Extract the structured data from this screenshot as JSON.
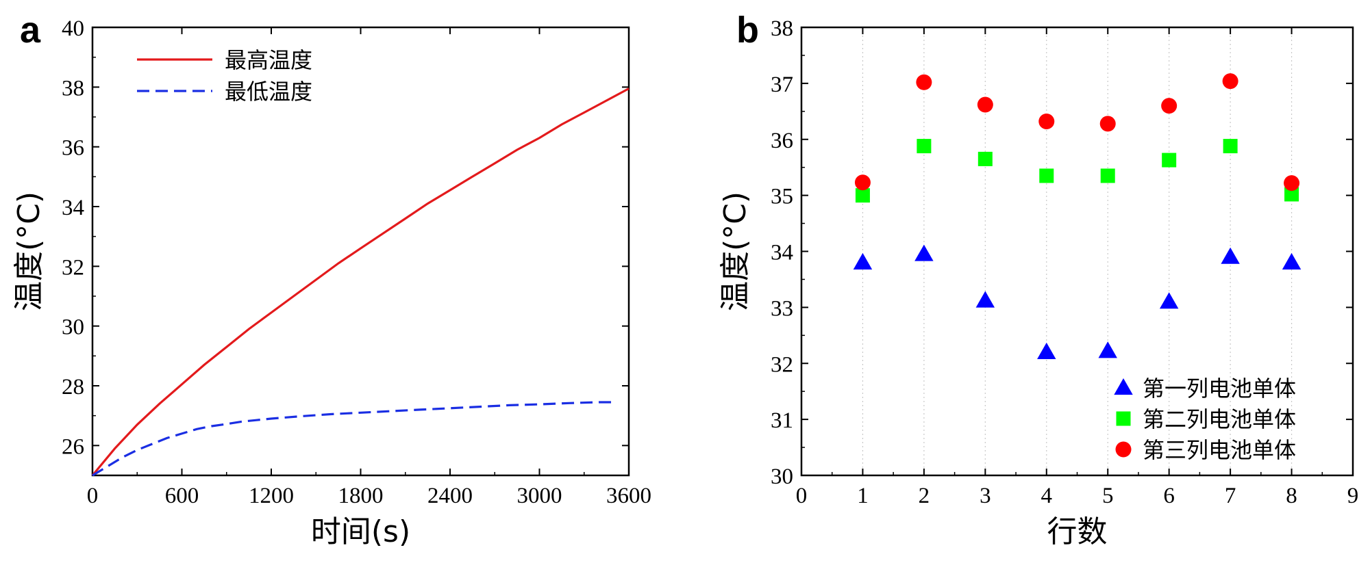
{
  "figure": {
    "panels": [
      {
        "letter": "a",
        "chart_data": {
          "type": "line",
          "title": "",
          "xlabel": "时间(s)",
          "ylabel": "温度(°C)",
          "xlim": [
            0,
            3600
          ],
          "ylim": [
            25,
            40
          ],
          "xticks": [
            0,
            600,
            1200,
            1800,
            2400,
            3000,
            3600
          ],
          "yticks": [
            26,
            28,
            30,
            32,
            34,
            36,
            38,
            40
          ],
          "grid": false,
          "legend_position": "top-left",
          "series": [
            {
              "name": "最高温度",
              "color": "#e31a1c",
              "style": "solid",
              "x": [
                0,
                150,
                300,
                450,
                600,
                750,
                900,
                1050,
                1200,
                1350,
                1500,
                1650,
                1800,
                1950,
                2100,
                2250,
                2400,
                2550,
                2700,
                2850,
                3000,
                3150,
                3300,
                3450,
                3600
              ],
              "y": [
                25.0,
                25.9,
                26.7,
                27.4,
                28.05,
                28.7,
                29.3,
                29.9,
                30.45,
                31.0,
                31.55,
                32.1,
                32.6,
                33.1,
                33.6,
                34.1,
                34.55,
                35.0,
                35.45,
                35.9,
                36.3,
                36.75,
                37.15,
                37.55,
                37.95
              ]
            },
            {
              "name": "最低温度",
              "color": "#1a2ee3",
              "style": "dashed",
              "x": [
                0,
                100,
                200,
                300,
                400,
                500,
                600,
                700,
                800,
                900,
                1000,
                1100,
                1200,
                1400,
                1600,
                1800,
                2000,
                2200,
                2400,
                2600,
                2800,
                3000,
                3200,
                3400,
                3500
              ],
              "y": [
                25.0,
                25.3,
                25.6,
                25.85,
                26.05,
                26.25,
                26.4,
                26.55,
                26.65,
                26.72,
                26.8,
                26.85,
                26.9,
                26.98,
                27.05,
                27.1,
                27.15,
                27.2,
                27.25,
                27.3,
                27.35,
                27.38,
                27.42,
                27.45,
                27.45
              ]
            }
          ]
        }
      },
      {
        "letter": "b",
        "chart_data": {
          "type": "scatter",
          "title": "",
          "xlabel": "行数",
          "ylabel": "温度(°C)",
          "xlim": [
            0,
            9
          ],
          "ylim": [
            30,
            38
          ],
          "xticks": [
            0,
            1,
            2,
            3,
            4,
            5,
            6,
            7,
            8,
            9
          ],
          "yticks": [
            30,
            31,
            32,
            33,
            34,
            35,
            36,
            37,
            38
          ],
          "grid": "vertical dotted at x = 1–8",
          "legend_position": "bottom-right",
          "series": [
            {
              "name": "第一列电池单体",
              "color": "#0000ff",
              "marker": "triangle",
              "x": [
                1,
                2,
                3,
                4,
                5,
                6,
                7,
                8
              ],
              "y": [
                33.8,
                33.95,
                33.12,
                32.2,
                32.22,
                33.1,
                33.9,
                33.8
              ]
            },
            {
              "name": "第二列电池单体",
              "color": "#00ff00",
              "marker": "square",
              "x": [
                1,
                2,
                3,
                4,
                5,
                6,
                7,
                8
              ],
              "y": [
                35.0,
                35.88,
                35.65,
                35.35,
                35.35,
                35.63,
                35.88,
                35.02
              ]
            },
            {
              "name": "第三列电池单体",
              "color": "#ff0000",
              "marker": "circle",
              "x": [
                1,
                2,
                3,
                4,
                5,
                6,
                7,
                8
              ],
              "y": [
                35.23,
                37.02,
                36.62,
                36.32,
                36.28,
                36.6,
                37.04,
                35.22
              ]
            }
          ]
        }
      }
    ]
  }
}
